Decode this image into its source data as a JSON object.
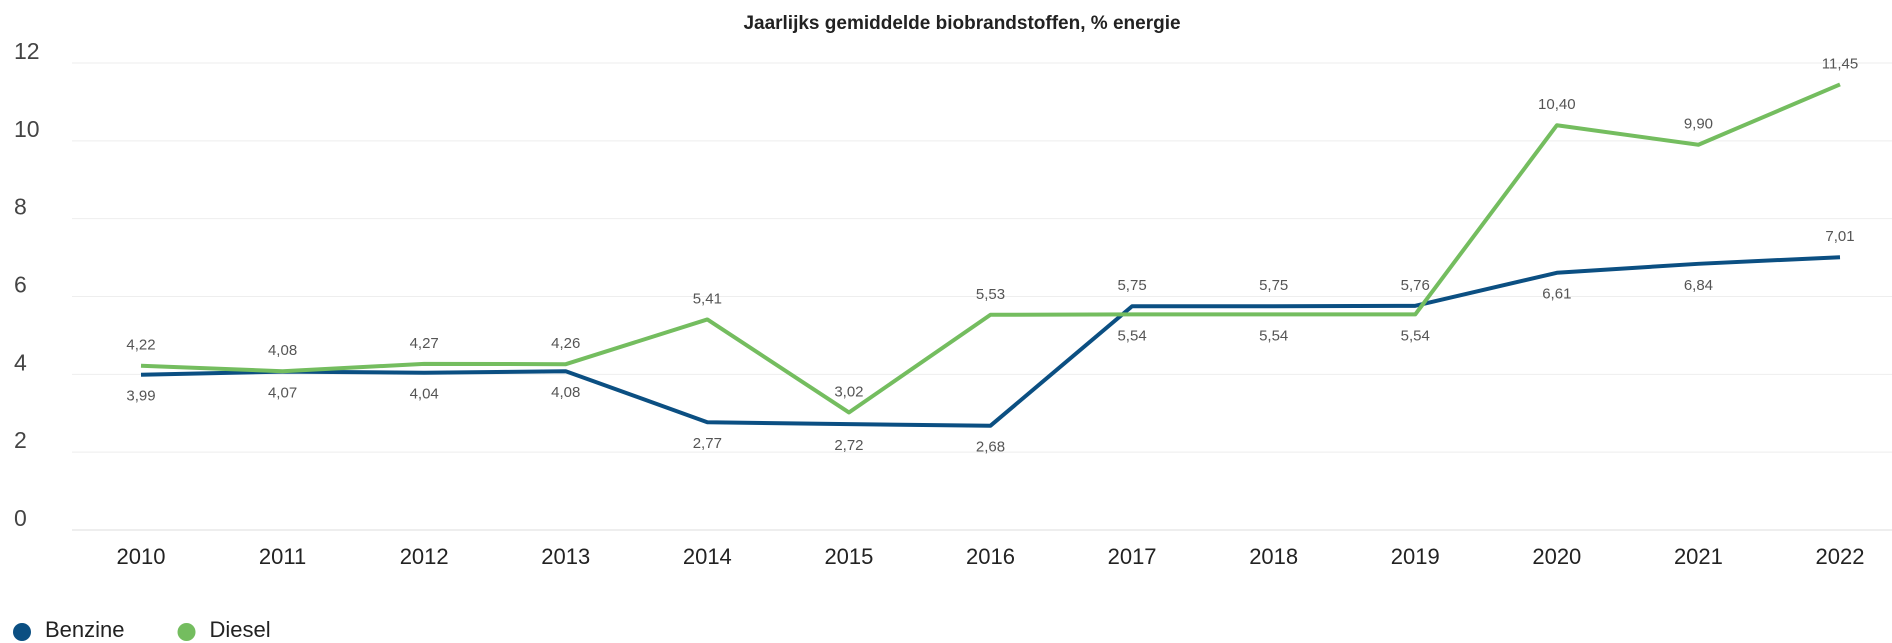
{
  "chart_data": {
    "type": "line",
    "title": "Jaarlijks gemiddelde biobrandstoffen, % energie",
    "categories": [
      "2010",
      "2011",
      "2012",
      "2013",
      "2014",
      "2015",
      "2016",
      "2017",
      "2018",
      "2019",
      "2020",
      "2021",
      "2022"
    ],
    "ylim": [
      0,
      12
    ],
    "yticks": [
      0,
      2,
      4,
      6,
      8,
      10,
      12
    ],
    "grid": true,
    "legend": "bottom-left",
    "series": [
      {
        "name": "Benzine",
        "color": "#0b4f82",
        "values": [
          3.99,
          4.07,
          4.04,
          4.08,
          2.77,
          2.72,
          2.68,
          5.75,
          5.75,
          5.76,
          6.61,
          6.84,
          7.01
        ],
        "value_labels": [
          "3,99",
          "4,07",
          "4,04",
          "4,08",
          "2,77",
          "2,72",
          "2,68",
          "5,75",
          "5,75",
          "5,76",
          "6,61",
          "6,84",
          "7,01"
        ]
      },
      {
        "name": "Diesel",
        "color": "#74bd5f",
        "values": [
          4.22,
          4.08,
          4.27,
          4.26,
          5.41,
          3.02,
          5.53,
          5.54,
          5.54,
          5.54,
          10.4,
          9.9,
          11.45
        ],
        "value_labels": [
          "4,22",
          "4,08",
          "4,27",
          "4,26",
          "5,41",
          "3,02",
          "5,53",
          "5,54",
          "5,54",
          "5,54",
          "10,40",
          "9,90",
          "11,45"
        ]
      }
    ]
  }
}
